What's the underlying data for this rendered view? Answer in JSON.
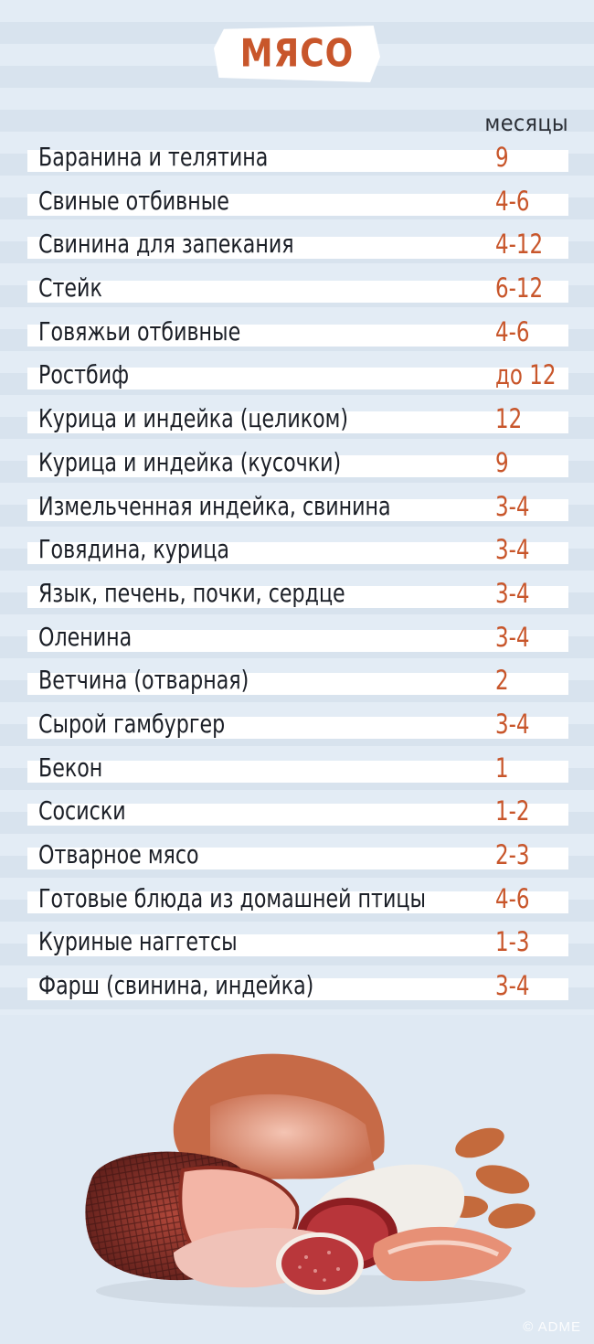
{
  "title": "МЯСО",
  "column_header": "месяцы",
  "rows": [
    {
      "name": "Баранина и телятина",
      "value": "9"
    },
    {
      "name": "Свиные отбивные",
      "value": "4-6"
    },
    {
      "name": "Свинина для запекания",
      "value": "4-12"
    },
    {
      "name": "Стейк",
      "value": "6-12"
    },
    {
      "name": "Говяжьи отбивные",
      "value": "4-6"
    },
    {
      "name": "Ростбиф",
      "value": "до 12"
    },
    {
      "name": "Курица и индейка (целиком)",
      "value": "12"
    },
    {
      "name": "Курица и индейка (кусочки)",
      "value": "9"
    },
    {
      "name": "Измельченная индейка, свинина",
      "value": "3-4"
    },
    {
      "name": "Говядина, курица",
      "value": "3-4"
    },
    {
      "name": "Язык, печень, почки, сердце",
      "value": "3-4"
    },
    {
      "name": "Оленина",
      "value": "3-4"
    },
    {
      "name": "Ветчина (отварная)",
      "value": "2"
    },
    {
      "name": "Сырой гамбургер",
      "value": "3-4"
    },
    {
      "name": "Бекон",
      "value": "1"
    },
    {
      "name": "Сосиски",
      "value": "1-2"
    },
    {
      "name": "Отварное мясо",
      "value": "2-3"
    },
    {
      "name": "Готовые блюда из домашней птицы",
      "value": "4-6"
    },
    {
      "name": "Куриные наггетсы",
      "value": "1-3"
    },
    {
      "name": "Фарш (свинина, индейка)",
      "value": "3-4"
    }
  ],
  "watermark": "© ADME",
  "colors": {
    "accent": "#c8562b",
    "background": "#dfe9f3",
    "text": "#1b1f27"
  }
}
